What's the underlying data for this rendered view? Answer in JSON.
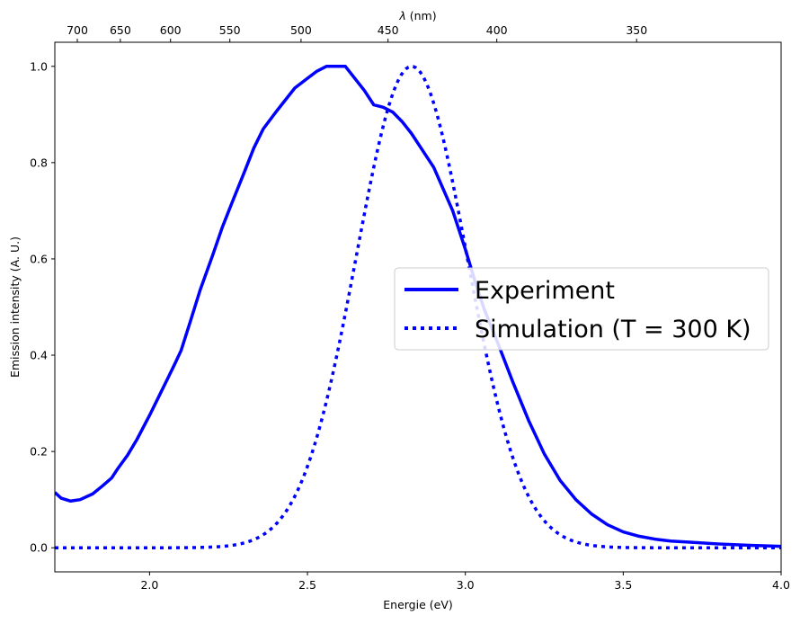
{
  "chart_data": {
    "type": "line",
    "xlabel": "Energie (eV)",
    "ylabel": "Emission intensity (A. U.)",
    "top_xlabel_symbol": "λ",
    "top_xlabel_unit": " (nm)",
    "xlim": [
      1.7,
      4.0
    ],
    "ylim": [
      -0.05,
      1.05
    ],
    "x_ticks": [
      2.0,
      2.5,
      3.0,
      3.5,
      4.0
    ],
    "x_tick_labels": [
      "2.0",
      "2.5",
      "3.0",
      "3.5",
      "4.0"
    ],
    "y_ticks": [
      0.0,
      0.2,
      0.4,
      0.6,
      0.8,
      1.0
    ],
    "y_tick_labels": [
      "0.0",
      "0.2",
      "0.4",
      "0.6",
      "0.8",
      "1.0"
    ],
    "top_ticks_nm": [
      700,
      650,
      600,
      550,
      500,
      450,
      400,
      350
    ],
    "top_tick_labels": [
      "700",
      "650",
      "600",
      "550",
      "500",
      "450",
      "400",
      "350"
    ],
    "grid": false,
    "legend_position": "center-right",
    "series": [
      {
        "name": "Experiment",
        "style": "solid",
        "color": "#0000ff",
        "x": [
          1.7,
          1.72,
          1.75,
          1.78,
          1.82,
          1.85,
          1.88,
          1.9,
          1.93,
          1.96,
          2.0,
          2.03,
          2.06,
          2.08,
          2.1,
          2.13,
          2.16,
          2.2,
          2.23,
          2.26,
          2.3,
          2.33,
          2.36,
          2.4,
          2.43,
          2.46,
          2.5,
          2.53,
          2.56,
          2.58,
          2.6,
          2.62,
          2.65,
          2.68,
          2.71,
          2.74,
          2.77,
          2.8,
          2.83,
          2.86,
          2.9,
          2.93,
          2.96,
          3.0,
          3.03,
          3.06,
          3.1,
          3.15,
          3.2,
          3.25,
          3.3,
          3.35,
          3.4,
          3.45,
          3.5,
          3.55,
          3.6,
          3.65,
          3.7,
          3.8,
          3.9,
          4.0
        ],
        "y": [
          0.115,
          0.103,
          0.097,
          0.1,
          0.112,
          0.128,
          0.145,
          0.165,
          0.192,
          0.225,
          0.275,
          0.315,
          0.355,
          0.382,
          0.41,
          0.472,
          0.535,
          0.608,
          0.665,
          0.715,
          0.78,
          0.83,
          0.87,
          0.905,
          0.93,
          0.955,
          0.975,
          0.99,
          1.0,
          1.0,
          1.0,
          1.0,
          0.975,
          0.95,
          0.92,
          0.915,
          0.905,
          0.885,
          0.86,
          0.83,
          0.79,
          0.745,
          0.7,
          0.62,
          0.555,
          0.495,
          0.43,
          0.345,
          0.265,
          0.195,
          0.14,
          0.1,
          0.07,
          0.048,
          0.033,
          0.024,
          0.018,
          0.014,
          0.012,
          0.008,
          0.005,
          0.003
        ]
      },
      {
        "name": "Simulation (T = 300 K)",
        "style": "dotted",
        "color": "#0000ff",
        "peak_x": 2.83,
        "peak_y": 1.0,
        "sigma": 0.175
      }
    ]
  }
}
